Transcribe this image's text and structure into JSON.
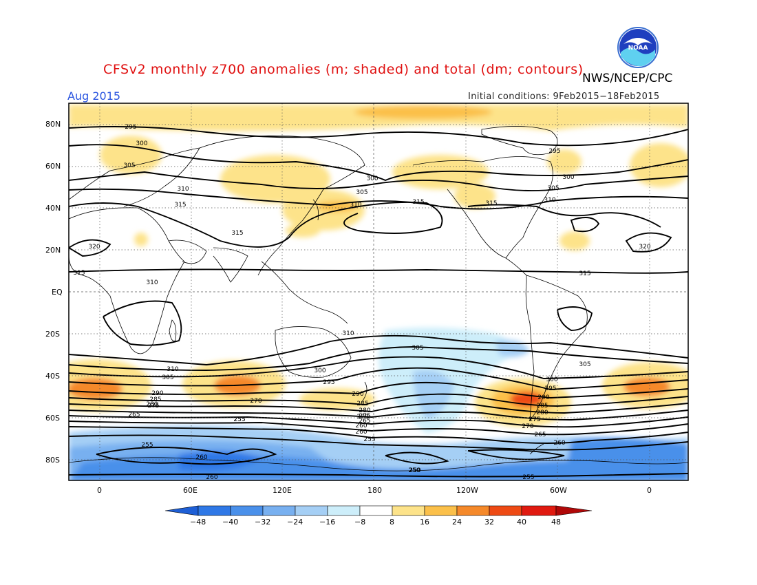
{
  "header": {
    "title": "CFSv2 monthly z700 anomalies (m; shaded) and total (dm; contours)",
    "agency": "NWS/NCEP/CPC",
    "period": "Aug 2015",
    "initial_conditions": "Initial conditions: 9Feb2015−18Feb2015",
    "logo_text": "NOAA",
    "logo_icon": "noaa-logo-icon"
  },
  "axes": {
    "lat_ticks": [
      "80N",
      "60N",
      "40N",
      "20N",
      "EQ",
      "20S",
      "40S",
      "60S",
      "80S"
    ],
    "lon_ticks": [
      "0",
      "60E",
      "120E",
      "180",
      "120W",
      "60W",
      "0"
    ]
  },
  "contour_labels": [
    "295",
    "300",
    "305",
    "310",
    "315",
    "320",
    "310",
    "315",
    "315",
    "300",
    "305",
    "310",
    "315",
    "300",
    "295",
    "305",
    "310",
    "315",
    "320",
    "315",
    "310",
    "305",
    "300",
    "295",
    "290",
    "285",
    "280",
    "275",
    "270",
    "265",
    "260",
    "255",
    "250",
    "270",
    "305",
    "310",
    "305",
    "300",
    "295",
    "290",
    "285",
    "280",
    "275",
    "270",
    "265",
    "260",
    "255",
    "255",
    "260",
    "250",
    "255",
    "260",
    "255",
    "260",
    "265",
    "275",
    "290",
    "285",
    "280",
    "275"
  ],
  "colorbar": {
    "labels": [
      "−48",
      "−40",
      "−32",
      "−24",
      "−16",
      "−8",
      "8",
      "16",
      "24",
      "32",
      "40",
      "48"
    ],
    "colors": [
      "#1e5fd6",
      "#2f78e6",
      "#4a90ea",
      "#78b0f0",
      "#a5cff5",
      "#cdeefa",
      "#ffffff",
      "#fde38a",
      "#fbc04a",
      "#f5892a",
      "#ee4a14",
      "#e01a10",
      "#b00808"
    ]
  }
}
